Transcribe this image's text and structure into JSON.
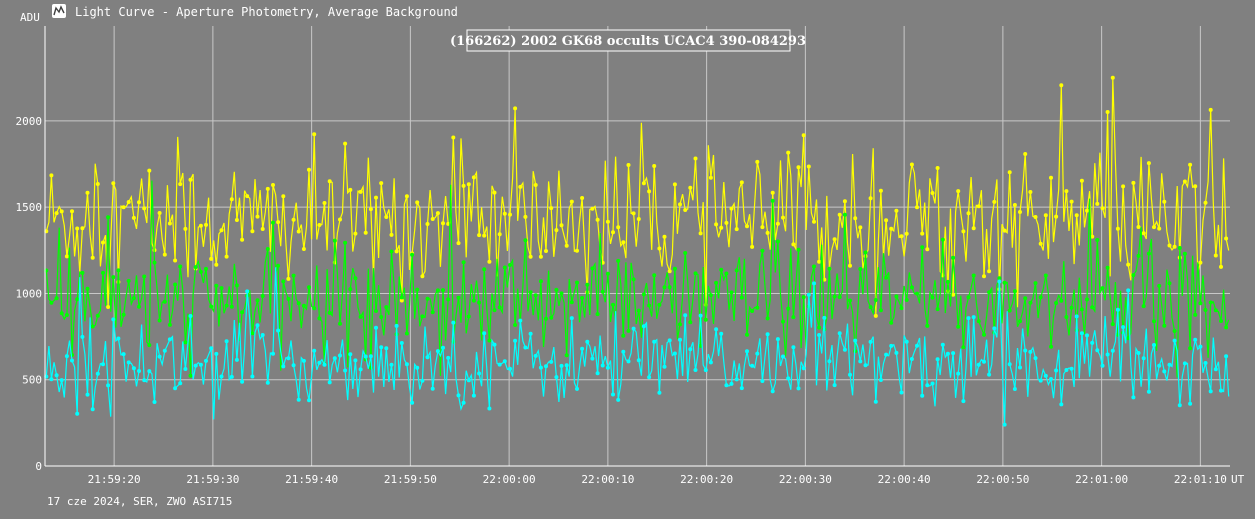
{
  "window": {
    "title": "Light Curve - Aperture Photometry, Average Background"
  },
  "footer": {
    "info": "17 cze 2024, SER, ZWO ASI715"
  },
  "colors": {
    "background": "#808080",
    "grid": "#c8c8c8",
    "text": "#ffffff"
  },
  "chart_data": {
    "type": "line",
    "title": "(166262) 2002 GK68 occults UCAC4 390-084293",
    "ylabel": "ADU",
    "xlabel": "UT",
    "x_start": "21:59:13",
    "x_end": "22:01:13",
    "x_tick_labels": [
      "21:59:20",
      "21:59:30",
      "21:59:40",
      "21:59:50",
      "22:00:00",
      "22:00:10",
      "22:00:20",
      "22:00:30",
      "22:00:40",
      "22:00:50",
      "22:01:00",
      "22:01:10"
    ],
    "y_tick_labels": [
      "0",
      "500",
      "1000",
      "1500",
      "2000"
    ],
    "ylim": [
      0,
      2550
    ],
    "grid": true,
    "series": [
      {
        "color": "#ffff00",
        "approx_mean": 1420,
        "approx_spread": 190,
        "values": []
      },
      {
        "color": "#00ff00",
        "approx_mean": 950,
        "approx_spread": 150,
        "values": []
      },
      {
        "color": "#00ffff",
        "approx_mean": 600,
        "approx_spread": 120,
        "values": []
      }
    ]
  }
}
